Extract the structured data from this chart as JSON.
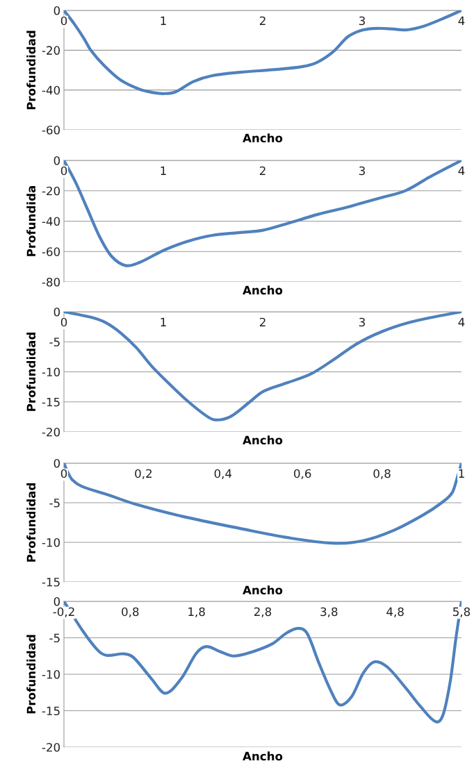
{
  "chart_data": [
    {
      "type": "line",
      "xlabel": "Ancho",
      "ylabel": "Profundidad",
      "xlim": [
        0,
        4
      ],
      "ylim": [
        -60,
        0
      ],
      "xticks": [
        0,
        1,
        2,
        3,
        4
      ],
      "yticks": [
        -60,
        -40,
        -20,
        0
      ],
      "grid": "y",
      "marker": "none",
      "line_style": "solid",
      "series": [
        {
          "color": "#4f81bd",
          "x": [
            0,
            0.1,
            0.2,
            0.27,
            0.4,
            0.57,
            0.76,
            0.9,
            1.0,
            1.12,
            1.3,
            1.49,
            1.79,
            2.1,
            2.4,
            2.55,
            2.71,
            2.86,
            3.01,
            3.16,
            3.3,
            3.44,
            3.62,
            3.8,
            4
          ],
          "values": [
            0,
            -6.5,
            -14,
            -20,
            -27.5,
            -35,
            -39.6,
            -41.3,
            -41.8,
            -41,
            -35.8,
            -32.8,
            -31,
            -29.8,
            -28.2,
            -26,
            -20.7,
            -13.1,
            -9.8,
            -9,
            -9.3,
            -9.8,
            -7.9,
            -4.4,
            0
          ]
        }
      ]
    },
    {
      "type": "line",
      "xlabel": "Ancho",
      "ylabel": "Profundida",
      "xlim": [
        0,
        4
      ],
      "ylim": [
        -80,
        0
      ],
      "xticks": [
        0,
        1,
        2,
        3,
        4
      ],
      "yticks": [
        -80,
        -60,
        -40,
        -20,
        0
      ],
      "grid": "y",
      "marker": "none",
      "line_style": "solid",
      "series": [
        {
          "color": "#4f81bd",
          "x": [
            0,
            0.12,
            0.24,
            0.36,
            0.48,
            0.62,
            0.76,
            1.0,
            1.24,
            1.49,
            1.79,
            2.0,
            2.25,
            2.55,
            2.86,
            3.16,
            3.44,
            3.68,
            4
          ],
          "values": [
            0,
            -14.8,
            -32.6,
            -50.4,
            -63.2,
            -69.2,
            -67.2,
            -59.3,
            -53.4,
            -49.4,
            -47.4,
            -46,
            -41.5,
            -35.6,
            -30.6,
            -25.1,
            -19.8,
            -10.9,
            0
          ]
        }
      ]
    },
    {
      "type": "line",
      "xlabel": "Ancho",
      "ylabel": "Profundidad",
      "xlim": [
        0,
        4
      ],
      "ylim": [
        -20,
        0
      ],
      "xticks": [
        0,
        1,
        2,
        3,
        4
      ],
      "yticks": [
        -20,
        -15,
        -10,
        -5,
        0
      ],
      "grid": "y",
      "marker": "none",
      "line_style": "solid",
      "series": [
        {
          "color": "#4f81bd",
          "x": [
            0,
            0.27,
            0.42,
            0.57,
            0.73,
            0.88,
            1.06,
            1.24,
            1.43,
            1.52,
            1.67,
            1.87,
            2.0,
            2.25,
            2.49,
            2.71,
            2.95,
            3.2,
            3.47,
            3.74,
            4
          ],
          "values": [
            0,
            -0.9,
            -1.8,
            -3.5,
            -6,
            -9,
            -12,
            -14.8,
            -17.3,
            -18,
            -17.5,
            -15,
            -13.3,
            -11.8,
            -10.3,
            -8,
            -5.3,
            -3.3,
            -1.8,
            -0.8,
            0
          ]
        }
      ]
    },
    {
      "type": "line",
      "xlabel": "Ancho",
      "ylabel": "Profundidad",
      "xlim": [
        0,
        1
      ],
      "ylim": [
        -15,
        0
      ],
      "xticks": [
        0,
        {
          "value": 0.2,
          "label": "0,2"
        },
        {
          "value": 0.4,
          "label": "0,4"
        },
        {
          "value": 0.6,
          "label": "0,6"
        },
        {
          "value": 0.8,
          "label": "0,8"
        },
        1
      ],
      "yticks": [
        -15,
        -10,
        -5,
        0
      ],
      "grid": "y",
      "marker": "none",
      "line_style": "solid",
      "series": [
        {
          "color": "#4f81bd",
          "x": [
            0,
            0.01,
            0.021,
            0.044,
            0.105,
            0.181,
            0.296,
            0.448,
            0.562,
            0.676,
            0.752,
            0.829,
            0.905,
            0.95,
            0.977,
            0.989,
            1
          ],
          "values": [
            0,
            -1.2,
            -2.1,
            -2.9,
            -3.9,
            -5.2,
            -6.7,
            -8.3,
            -9.4,
            -10.1,
            -9.8,
            -8.5,
            -6.5,
            -5,
            -3.7,
            -1.9,
            0
          ]
        }
      ]
    },
    {
      "type": "line",
      "xlabel": "Ancho",
      "ylabel": "Profundidad",
      "xlim": [
        -0.2,
        5.8
      ],
      "ylim": [
        -20,
        0
      ],
      "xticks": [
        {
          "value": -0.2,
          "label": "-0,2"
        },
        {
          "value": 0.8,
          "label": "0,8"
        },
        {
          "value": 1.8,
          "label": "1,8"
        },
        {
          "value": 2.8,
          "label": "2,8"
        },
        {
          "value": 3.8,
          "label": "3,8"
        },
        {
          "value": 4.8,
          "label": "4,8"
        },
        {
          "value": 5.8,
          "label": "5,8"
        }
      ],
      "yticks": [
        -20,
        -15,
        -10,
        -5,
        0
      ],
      "grid": "y",
      "marker": "none",
      "line_style": "solid",
      "series": [
        {
          "color": "#4f81bd",
          "x": [
            -0.2,
            0.08,
            0.31,
            0.44,
            0.71,
            0.85,
            1.12,
            1.33,
            1.57,
            1.8,
            1.95,
            2.16,
            2.36,
            2.65,
            2.95,
            3.15,
            3.33,
            3.47,
            3.65,
            3.83,
            3.96,
            4.14,
            4.32,
            4.48,
            4.68,
            4.96,
            5.18,
            5.41,
            5.52,
            5.63,
            5.72,
            5.8
          ],
          "values": [
            0,
            -4,
            -6.7,
            -7.4,
            -7.2,
            -7.7,
            -10.6,
            -12.6,
            -10.6,
            -7.1,
            -6.2,
            -6.9,
            -7.5,
            -6.9,
            -5.8,
            -4.4,
            -3.7,
            -4.4,
            -8.5,
            -12.3,
            -14.2,
            -13.1,
            -9.8,
            -8.3,
            -9,
            -11.9,
            -14.4,
            -16.5,
            -15.6,
            -11,
            -4.8,
            0
          ]
        }
      ]
    }
  ]
}
